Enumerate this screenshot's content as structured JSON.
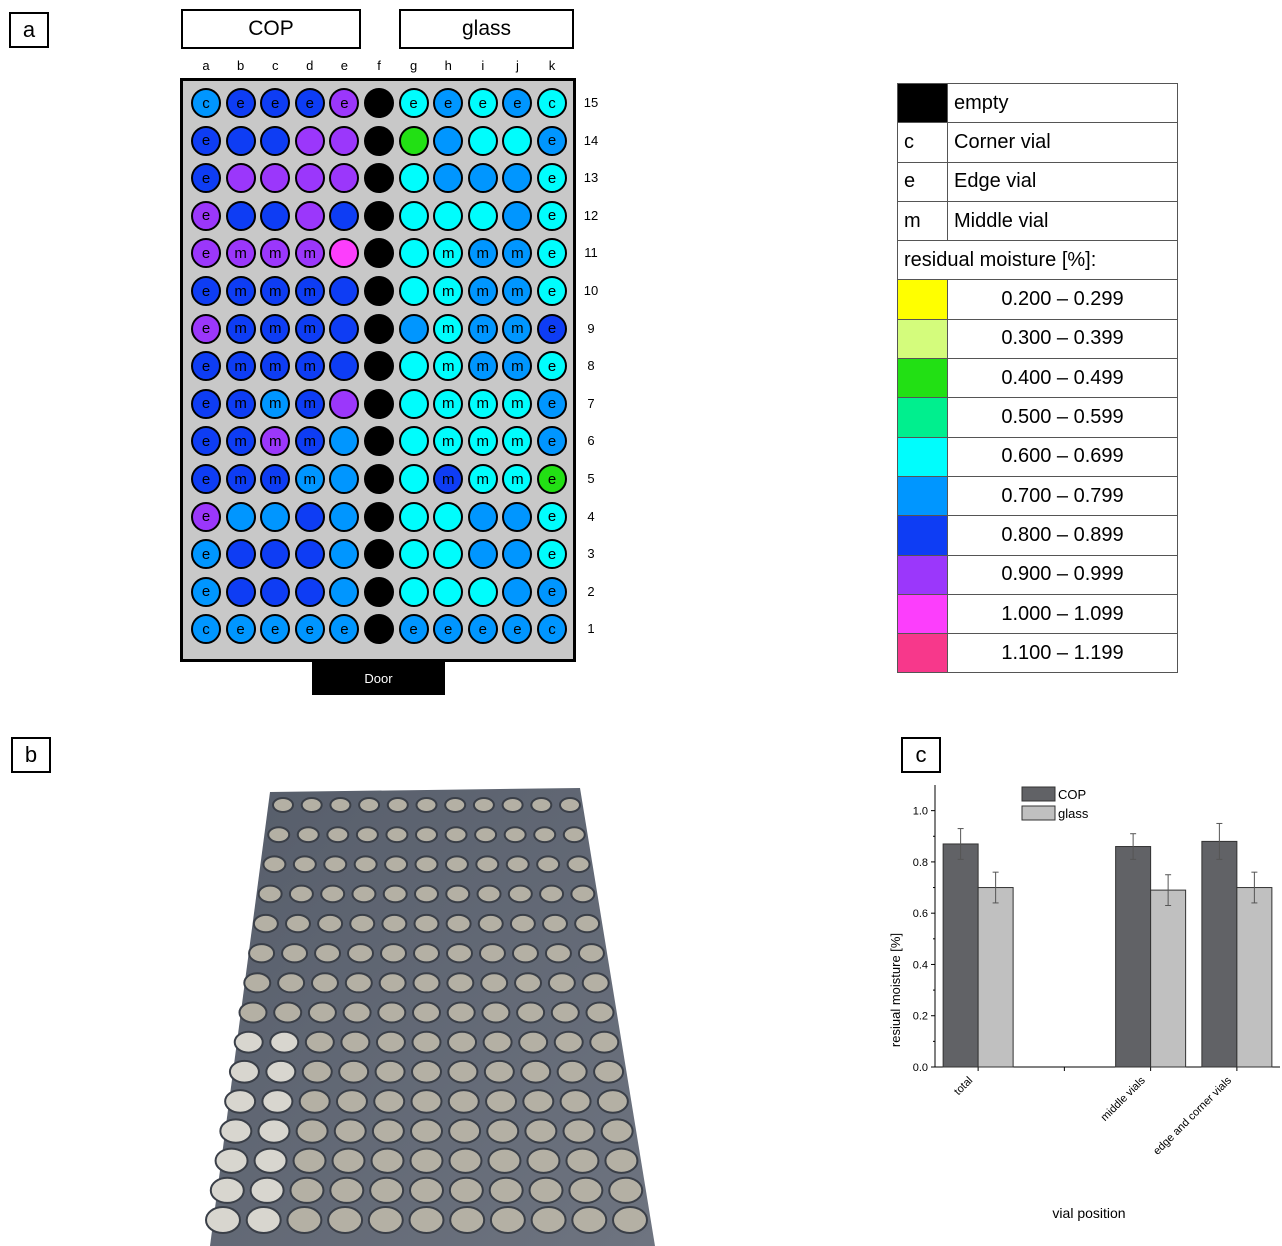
{
  "panels": {
    "a": "a",
    "b": "b",
    "c": "c"
  },
  "materials": {
    "left": "COP",
    "right": "glass"
  },
  "columns": [
    "a",
    "b",
    "c",
    "d",
    "e",
    "f",
    "g",
    "h",
    "i",
    "j",
    "k"
  ],
  "rows": [
    "15",
    "14",
    "13",
    "12",
    "11",
    "10",
    "9",
    "8",
    "7",
    "6",
    "5",
    "4",
    "3",
    "2",
    "1"
  ],
  "door": "Door",
  "color_scale": {
    "K": "#000000",
    "Y": "#ffff00",
    "L": "#d4fc7c",
    "G": "#22e014",
    "S": "#00ef8e",
    "C": "#00fdfd",
    "A": "#0096ff",
    "B": "#0e3df4",
    "P": "#9b37fb",
    "M": "#fc3efc",
    "R": "#f7388b"
  },
  "grid": {
    "colors": [
      "ABBBPKCACAC",
      "BBBPPKGACCA",
      "BPPPPKCAAAC",
      "PBBPBKCCCAC",
      "PPPPMKCCAAC",
      "BBBBBKCCAAC",
      "PBBBBKACAAB",
      "BBBBBKCCAAC",
      "BBABPKCCCCA",
      "BBPBAKCCCCA",
      "BBBAAKCBCCG",
      "PAABAKCCAAC",
      "ABBBAKCCAAC",
      "ABBBAKCCCAA",
      "AAAAAKAAAAA"
    ],
    "labels": [
      "ceeee.eeeec",
      "e.........e",
      "e.........e",
      "e.........e",
      "emmm...mmme",
      "emmm...mmme",
      "emmm...mmme",
      "emmm...mmme",
      "emmm...mmme",
      "emmm...mmme",
      "emmm...mmme",
      "e.........e",
      "e.........e",
      "e.........e",
      "ceeee.eeeec"
    ]
  },
  "legend": {
    "type_rows": [
      {
        "code": "",
        "color": "#000000",
        "label": "empty"
      },
      {
        "code": "c",
        "label": "Corner vial"
      },
      {
        "code": "e",
        "label": "Edge vial"
      },
      {
        "code": "m",
        "label": "Middle vial"
      }
    ],
    "moisture_title": "residual moisture [%]:",
    "ranges": [
      {
        "color": "#ffff00",
        "label": "0.200 – 0.299"
      },
      {
        "color": "#d4fc7c",
        "label": "0.300 – 0.399"
      },
      {
        "color": "#22e014",
        "label": "0.400 – 0.499"
      },
      {
        "color": "#00ef8e",
        "label": "0.500 – 0.599"
      },
      {
        "color": "#00fdfd",
        "label": "0.600 – 0.699"
      },
      {
        "color": "#0096ff",
        "label": "0.700 – 0.799"
      },
      {
        "color": "#0e3df4",
        "label": "0.800 – 0.899"
      },
      {
        "color": "#9b37fb",
        "label": "0.900 – 0.999"
      },
      {
        "color": "#fc3efc",
        "label": "1.000 – 1.099"
      },
      {
        "color": "#f7388b",
        "label": "1.100 – 1.199"
      }
    ]
  },
  "chart_data": {
    "type": "bar",
    "categories": [
      "total",
      "",
      "middle vials",
      "edge and corner vials"
    ],
    "series": [
      {
        "name": "COP",
        "color": "#616266",
        "values": [
          0.87,
          null,
          0.86,
          0.88
        ],
        "errors": [
          0.06,
          null,
          0.05,
          0.07
        ]
      },
      {
        "name": "glass",
        "color": "#c0c0c0",
        "values": [
          0.7,
          null,
          0.69,
          0.7
        ],
        "errors": [
          0.06,
          null,
          0.06,
          0.06
        ]
      }
    ],
    "xlabel": "vial position",
    "ylabel": "resiual moisture [%]",
    "ylim": [
      0.0,
      1.1
    ],
    "yticks": [
      "0.0",
      "0.2",
      "0.4",
      "0.6",
      "0.8",
      "1.0"
    ],
    "legend_position": "top-left"
  }
}
